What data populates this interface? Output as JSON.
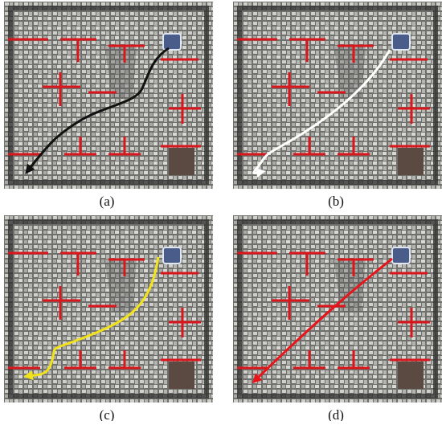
{
  "panels": [
    {
      "label": "(a)",
      "path_color": "#111111"
    },
    {
      "label": "(b)",
      "path_color": "#ffffff"
    },
    {
      "label": "(c)",
      "path_color": "#f2e21a"
    },
    {
      "label": "(d)",
      "path_color": "#e8141a"
    }
  ]
}
